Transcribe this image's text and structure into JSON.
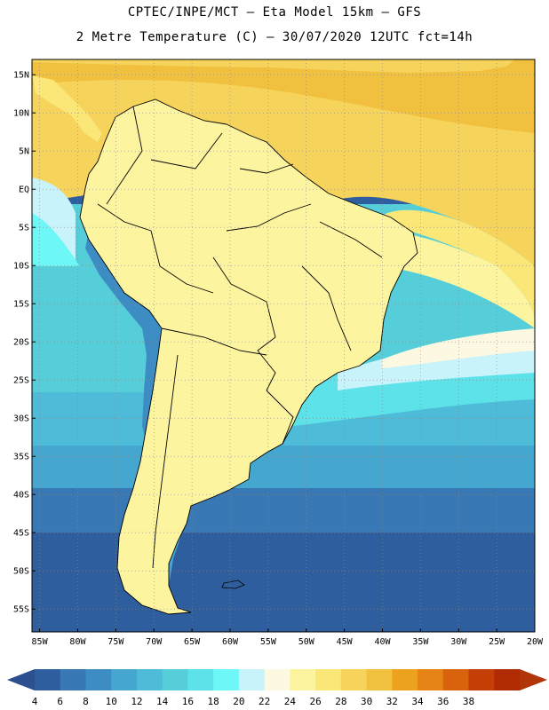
{
  "header": {
    "line1": "CPTEC/INPE/MCT –  Eta Model 15km – GFS",
    "line2": "2 Metre Temperature (C) – 30/07/2020 12UTC fct=14h"
  },
  "map": {
    "lat_labels": [
      "15N",
      "10N",
      "5N",
      "EQ",
      "5S",
      "10S",
      "15S",
      "20S",
      "25S",
      "30S",
      "35S",
      "40S",
      "45S",
      "50S",
      "55S"
    ],
    "lat_values": [
      15,
      10,
      5,
      0,
      -5,
      -10,
      -15,
      -20,
      -25,
      -30,
      -35,
      -40,
      -45,
      -50,
      -55
    ],
    "lon_labels": [
      "85W",
      "80W",
      "75W",
      "70W",
      "65W",
      "60W",
      "55W",
      "50W",
      "45W",
      "40W",
      "35W",
      "30W",
      "25W",
      "20W"
    ],
    "lon_values": [
      -85,
      -80,
      -75,
      -70,
      -65,
      -60,
      -55,
      -50,
      -45,
      -40,
      -35,
      -30,
      -25,
      -20
    ],
    "lat_range": [
      -58,
      17
    ],
    "lon_range": [
      -86,
      -20
    ],
    "grid": "dotted"
  },
  "colorbar": {
    "labels": [
      "4",
      "6",
      "8",
      "10",
      "12",
      "14",
      "16",
      "18",
      "20",
      "22",
      "24",
      "26",
      "28",
      "30",
      "32",
      "34",
      "36",
      "38"
    ],
    "colors": [
      "#2e5e9e",
      "#3878b4",
      "#3d8dc4",
      "#45a6cf",
      "#4ebbd8",
      "#55ced9",
      "#5ce2e8",
      "#6ef7f7",
      "#c8f3fb",
      "#fdf8e2",
      "#fdf4a0",
      "#fbe678",
      "#f6d35a",
      "#f1c03e",
      "#eda21e",
      "#e58414",
      "#d9620c",
      "#c43e06",
      "#b02a02"
    ],
    "arrow_left_color": "#2b4f8f",
    "arrow_right_color": "#b0360a"
  }
}
